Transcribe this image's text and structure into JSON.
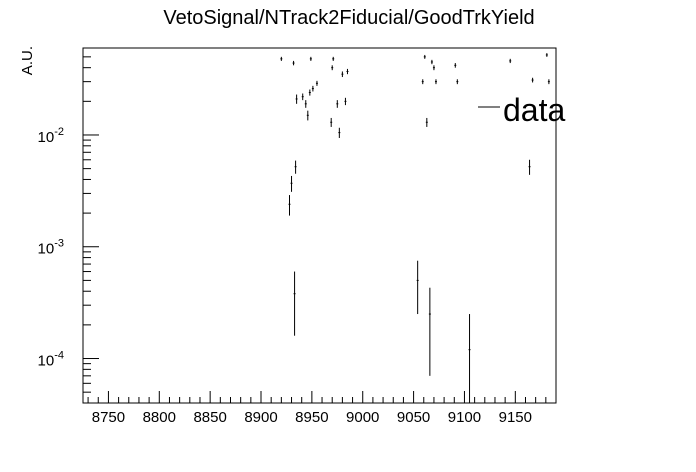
{
  "chart_data": {
    "type": "scatter",
    "title": "VetoSignal/NTrack2Fiducial/GoodTrkYield",
    "xlabel": "",
    "ylabel": "A.U.",
    "xlim": [
      8725,
      9190
    ],
    "ylim": [
      4e-05,
      0.06
    ],
    "yscale": "log",
    "x_ticks": [
      "8750",
      "8800",
      "8850",
      "8900",
      "8950",
      "9000",
      "9050",
      "9100",
      "9150"
    ],
    "y_ticks": [
      {
        "value": 0.0001,
        "base": "10",
        "exp": "-4"
      },
      {
        "value": 0.001,
        "base": "10",
        "exp": "-3"
      },
      {
        "value": 0.01,
        "base": "10",
        "exp": "-2"
      }
    ],
    "legend": {
      "position": "top-right",
      "entries": [
        "data"
      ]
    },
    "series": [
      {
        "name": "data",
        "points": [
          {
            "x": 8920,
            "y": 0.048,
            "lo": 0.046,
            "hi": 0.05
          },
          {
            "x": 8928,
            "y": 0.0024,
            "lo": 0.0019,
            "hi": 0.0029
          },
          {
            "x": 8930,
            "y": 0.0037,
            "lo": 0.0031,
            "hi": 0.0043
          },
          {
            "x": 8932,
            "y": 0.044,
            "lo": 0.042,
            "hi": 0.046
          },
          {
            "x": 8933,
            "y": 0.00038,
            "lo": 0.00016,
            "hi": 0.0006
          },
          {
            "x": 8934,
            "y": 0.0052,
            "lo": 0.0045,
            "hi": 0.0059
          },
          {
            "x": 8935,
            "y": 0.021,
            "lo": 0.019,
            "hi": 0.023
          },
          {
            "x": 8941,
            "y": 0.022,
            "lo": 0.0205,
            "hi": 0.0235
          },
          {
            "x": 8944,
            "y": 0.019,
            "lo": 0.0175,
            "hi": 0.0205
          },
          {
            "x": 8946,
            "y": 0.015,
            "lo": 0.0135,
            "hi": 0.0165
          },
          {
            "x": 8948,
            "y": 0.024,
            "lo": 0.0225,
            "hi": 0.0255
          },
          {
            "x": 8949,
            "y": 0.048,
            "lo": 0.046,
            "hi": 0.05
          },
          {
            "x": 8951,
            "y": 0.026,
            "lo": 0.0245,
            "hi": 0.0275
          },
          {
            "x": 8955,
            "y": 0.029,
            "lo": 0.0275,
            "hi": 0.0305
          },
          {
            "x": 8969,
            "y": 0.013,
            "lo": 0.0118,
            "hi": 0.0142
          },
          {
            "x": 8970,
            "y": 0.04,
            "lo": 0.038,
            "hi": 0.042
          },
          {
            "x": 8971,
            "y": 0.048,
            "lo": 0.046,
            "hi": 0.05
          },
          {
            "x": 8975,
            "y": 0.019,
            "lo": 0.0175,
            "hi": 0.0205
          },
          {
            "x": 8977,
            "y": 0.0105,
            "lo": 0.0094,
            "hi": 0.0116
          },
          {
            "x": 8980,
            "y": 0.035,
            "lo": 0.033,
            "hi": 0.037
          },
          {
            "x": 8983,
            "y": 0.02,
            "lo": 0.0185,
            "hi": 0.0215
          },
          {
            "x": 8985,
            "y": 0.037,
            "lo": 0.035,
            "hi": 0.039
          },
          {
            "x": 9054,
            "y": 0.0005,
            "lo": 0.00025,
            "hi": 0.00075
          },
          {
            "x": 9059,
            "y": 0.03,
            "lo": 0.0285,
            "hi": 0.0315
          },
          {
            "x": 9061,
            "y": 0.05,
            "lo": 0.048,
            "hi": 0.052
          },
          {
            "x": 9063,
            "y": 0.013,
            "lo": 0.0118,
            "hi": 0.0142
          },
          {
            "x": 9066,
            "y": 0.00025,
            "lo": 7e-05,
            "hi": 0.00043
          },
          {
            "x": 9068,
            "y": 0.045,
            "lo": 0.043,
            "hi": 0.047
          },
          {
            "x": 9070,
            "y": 0.04,
            "lo": 0.038,
            "hi": 0.042
          },
          {
            "x": 9072,
            "y": 0.03,
            "lo": 0.0285,
            "hi": 0.0315
          },
          {
            "x": 9091,
            "y": 0.042,
            "lo": 0.04,
            "hi": 0.044
          },
          {
            "x": 9093,
            "y": 0.03,
            "lo": 0.0285,
            "hi": 0.0315
          },
          {
            "x": 9105,
            "y": 0.00012,
            "lo": 2e-05,
            "hi": 0.00025
          },
          {
            "x": 9145,
            "y": 0.046,
            "lo": 0.044,
            "hi": 0.048
          },
          {
            "x": 9164,
            "y": 0.0052,
            "lo": 0.0044,
            "hi": 0.006
          },
          {
            "x": 9167,
            "y": 0.031,
            "lo": 0.0295,
            "hi": 0.0325
          },
          {
            "x": 9181,
            "y": 0.052,
            "lo": 0.05,
            "hi": 0.054
          },
          {
            "x": 9183,
            "y": 0.03,
            "lo": 0.0285,
            "hi": 0.0315
          }
        ]
      }
    ]
  }
}
